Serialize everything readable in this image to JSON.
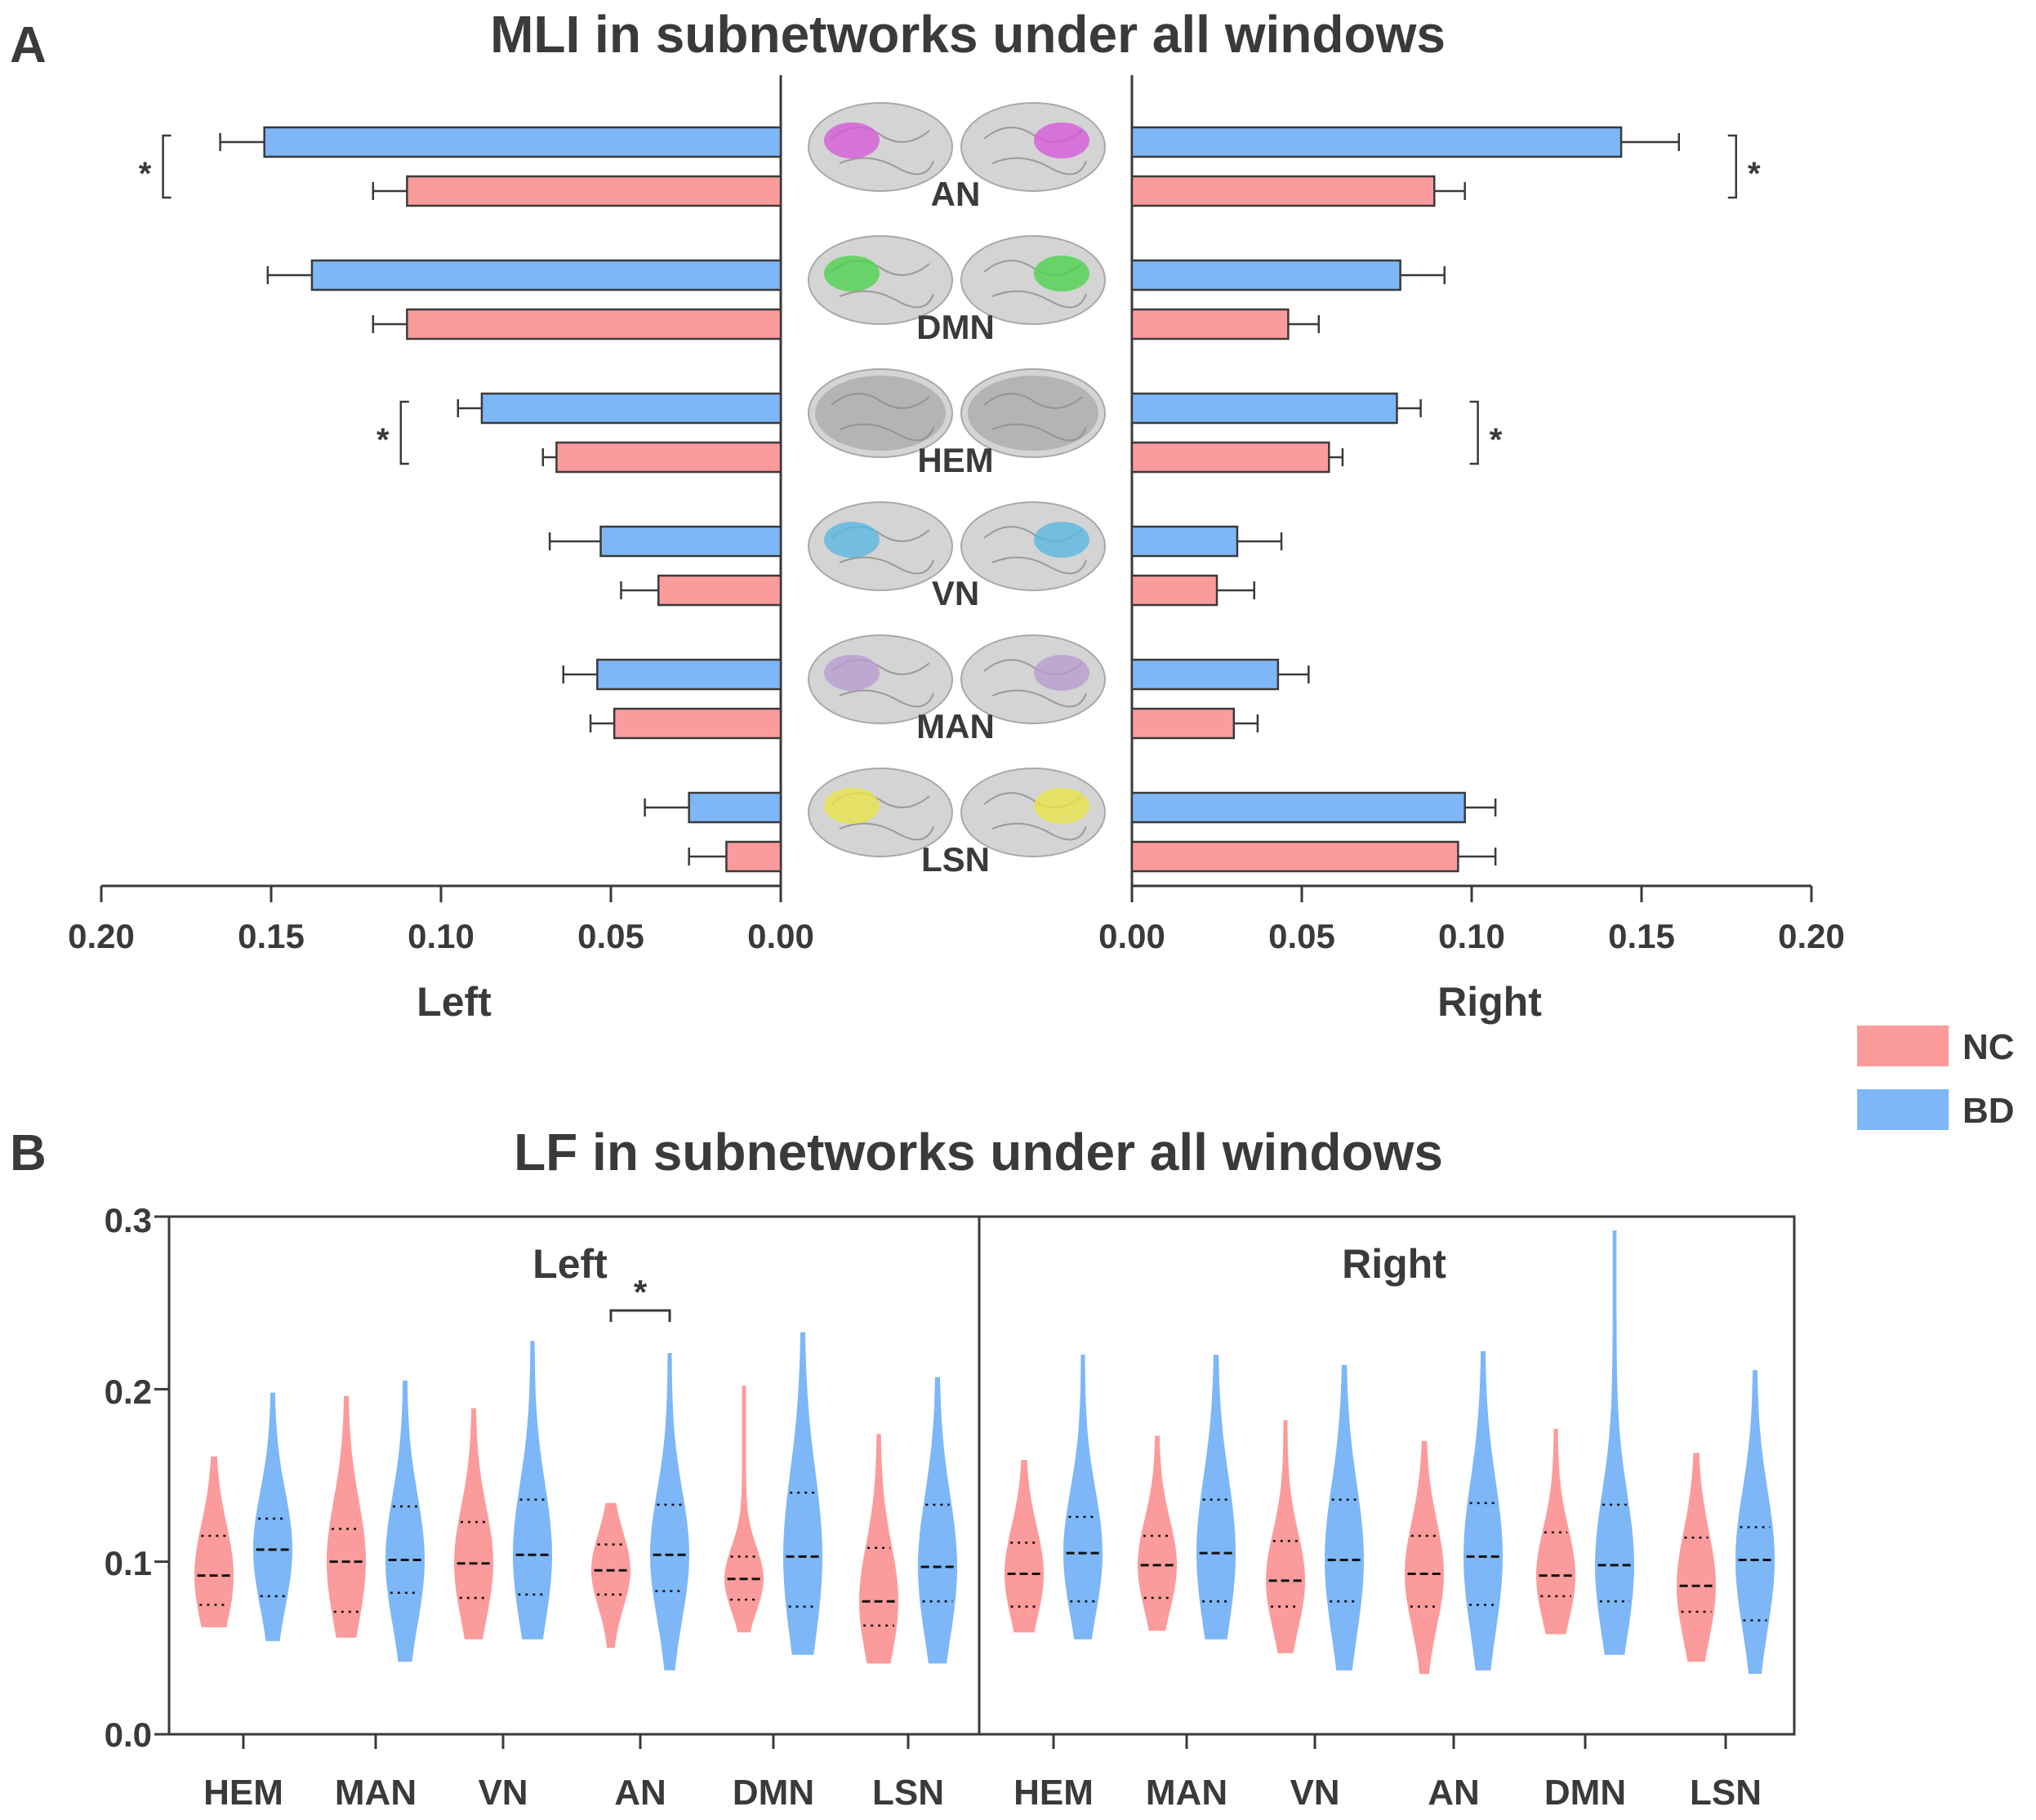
{
  "panel_a": {
    "letter": "A",
    "title": "MLI in subnetworks under all windows",
    "left_label": "Left",
    "right_label": "Right",
    "left_ticks": [
      "0.20",
      "0.15",
      "0.10",
      "0.05",
      "0.00"
    ],
    "right_ticks": [
      "0.00",
      "0.05",
      "0.10",
      "0.15",
      "0.20"
    ],
    "brain_colors": {
      "AN": "#d45ad8",
      "DMN": "#4ed24e",
      "HEM": "#a0a0a0",
      "VN": "#5ab8e0",
      "MAN": "#b89ccf",
      "LSN": "#e8e34a"
    }
  },
  "panel_b": {
    "letter": "B",
    "title": "LF in subnetworks under all windows",
    "left_group_label": "Left",
    "right_group_label": "Right",
    "y_ticks": [
      "0.0",
      "0.1",
      "0.2",
      "0.3"
    ]
  },
  "legend": {
    "items": [
      {
        "label": "NC",
        "color": "#fc9b9b"
      },
      {
        "label": "BD",
        "color": "#7db7f7"
      }
    ]
  },
  "chart_data": [
    {
      "type": "bar",
      "orientation": "horizontal",
      "title": "MLI in subnetworks under all windows",
      "categories": [
        "AN",
        "DMN",
        "HEM",
        "VN",
        "MAN",
        "LSN"
      ],
      "xlim": [
        0,
        0.2
      ],
      "significance_marker": "*",
      "left": {
        "xlabel": "Left",
        "series": [
          {
            "name": "BD",
            "values": [
              0.152,
              0.138,
              0.088,
              0.053,
              0.054,
              0.027
            ],
            "errors": [
              0.013,
              0.013,
              0.007,
              0.015,
              0.01,
              0.013
            ]
          },
          {
            "name": "NC",
            "values": [
              0.11,
              0.11,
              0.066,
              0.036,
              0.049,
              0.016
            ],
            "errors": [
              0.01,
              0.01,
              0.004,
              0.011,
              0.007,
              0.011
            ]
          }
        ],
        "significant": [
          "AN",
          "HEM"
        ]
      },
      "right": {
        "xlabel": "Right",
        "series": [
          {
            "name": "BD",
            "values": [
              0.144,
              0.079,
              0.078,
              0.031,
              0.043,
              0.098
            ],
            "errors": [
              0.017,
              0.013,
              0.007,
              0.013,
              0.009,
              0.009
            ]
          },
          {
            "name": "NC",
            "values": [
              0.089,
              0.046,
              0.058,
              0.025,
              0.03,
              0.096
            ],
            "errors": [
              0.009,
              0.009,
              0.004,
              0.011,
              0.007,
              0.011
            ]
          }
        ],
        "significant": [
          "AN",
          "HEM"
        ]
      }
    },
    {
      "type": "violin",
      "title": "LF in subnetworks under all windows",
      "categories": [
        "HEM",
        "MAN",
        "VN",
        "AN",
        "DMN",
        "LSN"
      ],
      "ylim": [
        0,
        0.3
      ],
      "significant": [
        {
          "group": "Left",
          "category": "AN",
          "marker": "*"
        }
      ],
      "groups": [
        {
          "name": "Left",
          "series": [
            {
              "name": "NC",
              "median": [
                0.092,
                0.1,
                0.099,
                0.095,
                0.09,
                0.077
              ],
              "q1": [
                0.075,
                0.071,
                0.079,
                0.081,
                0.078,
                0.063
              ],
              "q3": [
                0.115,
                0.119,
                0.123,
                0.11,
                0.103,
                0.108
              ],
              "min": [
                0.062,
                0.056,
                0.055,
                0.05,
                0.059,
                0.041
              ],
              "max": [
                0.161,
                0.196,
                0.189,
                0.134,
                0.202,
                0.174
              ]
            },
            {
              "name": "BD",
              "median": [
                0.107,
                0.101,
                0.104,
                0.104,
                0.103,
                0.097
              ],
              "q1": [
                0.08,
                0.082,
                0.081,
                0.083,
                0.074,
                0.077
              ],
              "q3": [
                0.125,
                0.132,
                0.136,
                0.133,
                0.14,
                0.133
              ],
              "min": [
                0.054,
                0.042,
                0.055,
                0.037,
                0.046,
                0.041
              ],
              "max": [
                0.198,
                0.205,
                0.228,
                0.221,
                0.233,
                0.207
              ]
            }
          ]
        },
        {
          "name": "Right",
          "series": [
            {
              "name": "NC",
              "median": [
                0.093,
                0.098,
                0.089,
                0.093,
                0.092,
                0.086
              ],
              "q1": [
                0.074,
                0.079,
                0.074,
                0.074,
                0.08,
                0.071
              ],
              "q3": [
                0.111,
                0.115,
                0.112,
                0.115,
                0.117,
                0.114
              ],
              "min": [
                0.059,
                0.06,
                0.047,
                0.035,
                0.058,
                0.042
              ],
              "max": [
                0.159,
                0.173,
                0.182,
                0.17,
                0.177,
                0.163
              ]
            },
            {
              "name": "BD",
              "median": [
                0.105,
                0.105,
                0.101,
                0.103,
                0.098,
                0.101
              ],
              "q1": [
                0.077,
                0.077,
                0.077,
                0.075,
                0.077,
                0.066
              ],
              "q3": [
                0.126,
                0.136,
                0.136,
                0.134,
                0.133,
                0.12
              ],
              "min": [
                0.055,
                0.055,
                0.037,
                0.037,
                0.046,
                0.035
              ],
              "max": [
                0.22,
                0.22,
                0.214,
                0.222,
                0.292,
                0.211
              ]
            }
          ]
        }
      ]
    }
  ]
}
